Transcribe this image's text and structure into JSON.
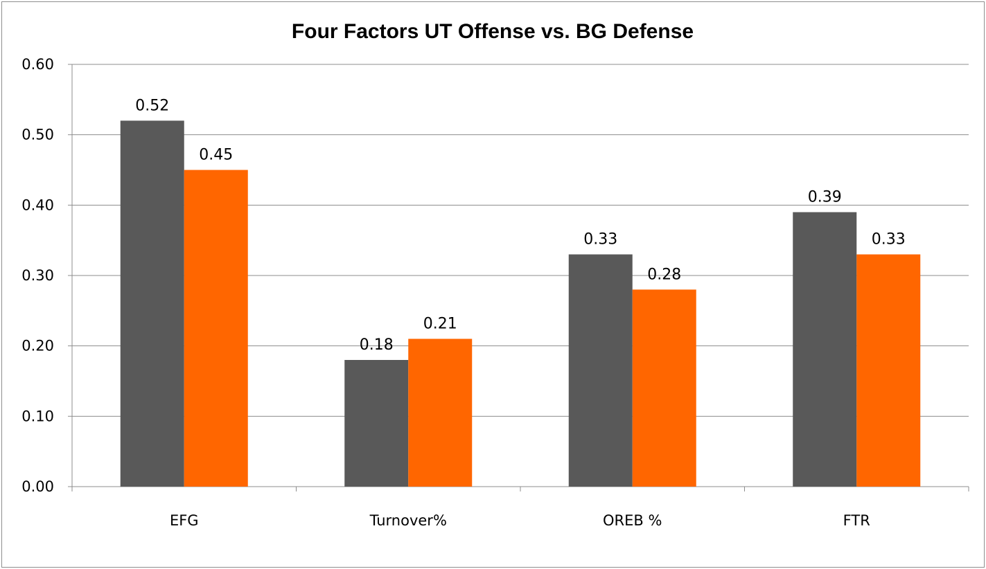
{
  "chart_data": {
    "type": "bar",
    "title": "Four Factors UT Offense vs. BG Defense",
    "categories": [
      "EFG",
      "Turnover%",
      "OREB %",
      "FTR"
    ],
    "series": [
      {
        "name": "UT Offense",
        "color": "#595959",
        "values": [
          0.52,
          0.18,
          0.33,
          0.39
        ],
        "labels": [
          "0.52",
          "0.18",
          "0.33",
          "0.39"
        ]
      },
      {
        "name": "BG Defense",
        "color": "#ff6600",
        "values": [
          0.45,
          0.21,
          0.28,
          0.33
        ],
        "labels": [
          "0.45",
          "0.21",
          "0.28",
          "0.33"
        ]
      }
    ],
    "ylim": [
      0,
      0.6
    ],
    "yticks": [
      "0.00",
      "0.10",
      "0.20",
      "0.30",
      "0.40",
      "0.50",
      "0.60"
    ],
    "xlabel": "",
    "ylabel": "",
    "grid": true,
    "legend": "none"
  }
}
